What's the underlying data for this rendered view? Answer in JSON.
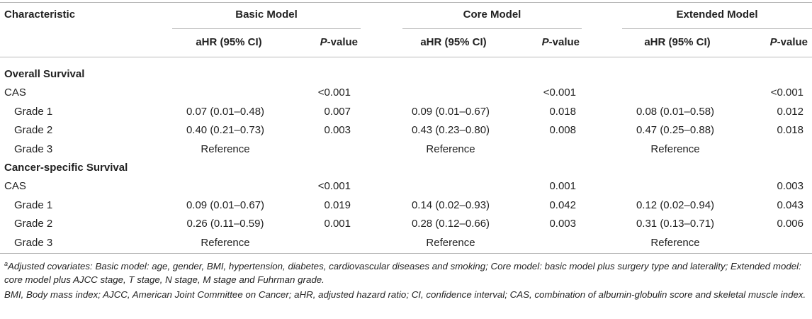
{
  "header": {
    "characteristic": "Characteristic",
    "models": [
      "Basic Model",
      "Core Model",
      "Extended Model"
    ],
    "ahr": "aHR (95% CI)",
    "p_italic": "P",
    "p_rest": "-value"
  },
  "sections": [
    {
      "title": "Overall Survival",
      "rows": [
        {
          "label": "CAS",
          "cells": [
            "",
            "<0.001",
            "",
            "<0.001",
            "",
            "<0.001"
          ]
        },
        {
          "label": "Grade 1",
          "cells": [
            "0.07 (0.01–0.48)",
            "0.007",
            "0.09 (0.01–0.67)",
            "0.018",
            "0.08 (0.01–0.58)",
            "0.012"
          ]
        },
        {
          "label": "Grade 2",
          "cells": [
            "0.40 (0.21–0.73)",
            "0.003",
            "0.43 (0.23–0.80)",
            "0.008",
            "0.47 (0.25–0.88)",
            "0.018"
          ]
        },
        {
          "label": "Grade 3",
          "cells": [
            "Reference",
            "",
            "Reference",
            "",
            "Reference",
            ""
          ]
        }
      ]
    },
    {
      "title": "Cancer-specific Survival",
      "rows": [
        {
          "label": "CAS",
          "cells": [
            "",
            "<0.001",
            "",
            "0.001",
            "",
            "0.003"
          ]
        },
        {
          "label": "Grade 1",
          "cells": [
            "0.09 (0.01–0.67)",
            "0.019",
            "0.14 (0.02–0.93)",
            "0.042",
            "0.12 (0.02–0.94)",
            "0.043"
          ]
        },
        {
          "label": "Grade 2",
          "cells": [
            "0.26 (0.11–0.59)",
            "0.001",
            "0.28 (0.12–0.66)",
            "0.003",
            "0.31 (0.13–0.71)",
            "0.006"
          ]
        },
        {
          "label": "Grade 3",
          "cells": [
            "Reference",
            "",
            "Reference",
            "",
            "Reference",
            ""
          ]
        }
      ]
    }
  ],
  "footnotes": {
    "a_mark": "a",
    "a_text": "Adjusted covariates: Basic model: age, gender, BMI, hypertension, diabetes, cardiovascular diseases and smoking; Core model: basic model plus surgery type and laterality; Extended model: core model plus AJCC stage, T stage, N stage, M stage and Fuhrman grade.",
    "abbrev": "BMI, Body mass index; AJCC, American Joint Committee on Cancer; aHR, adjusted hazard ratio; CI, confidence interval; CAS, combination of albumin-globulin score and skeletal muscle index."
  }
}
